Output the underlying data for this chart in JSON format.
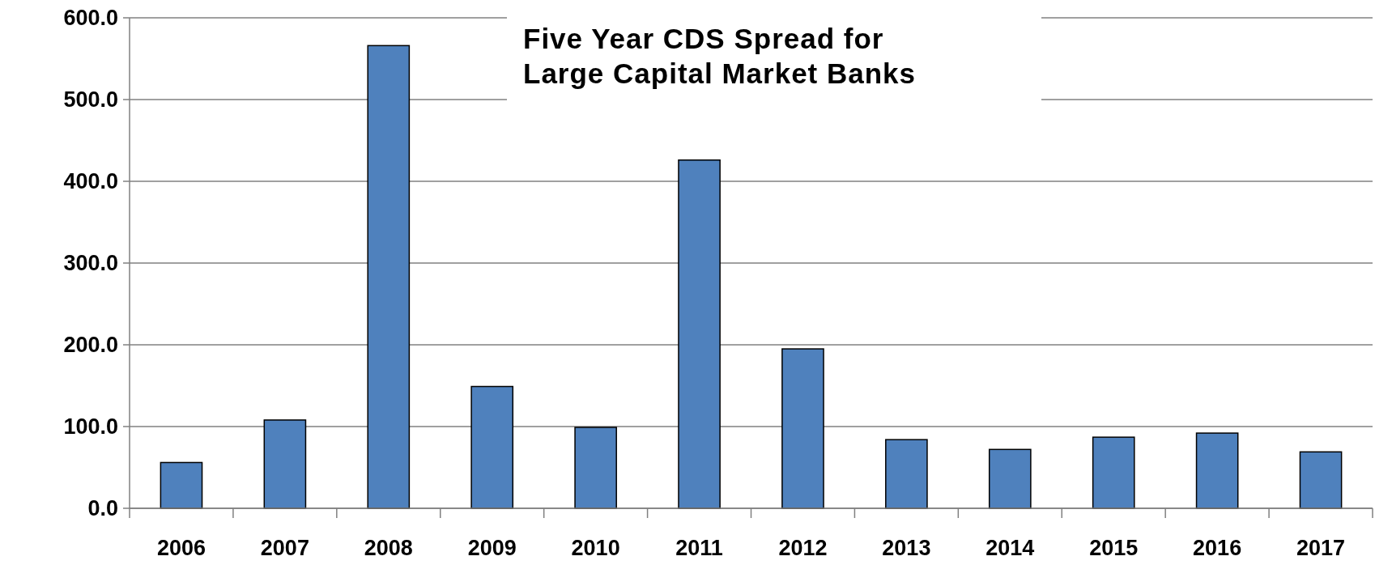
{
  "chart_data": {
    "type": "bar",
    "title": "Five Year CDS Spread for\nLarge Capital Market Banks",
    "categories": [
      "2006",
      "2007",
      "2008",
      "2009",
      "2010",
      "2011",
      "2012",
      "2013",
      "2014",
      "2015",
      "2016",
      "2017"
    ],
    "values": [
      56,
      108,
      566,
      149,
      99,
      426,
      195,
      84,
      72,
      87,
      92,
      69
    ],
    "color": "#4f81bd",
    "ylim": [
      0,
      600
    ],
    "yticks": [
      {
        "value": 0,
        "label": "0.0"
      },
      {
        "value": 100,
        "label": "100.0"
      },
      {
        "value": 200,
        "label": "200.0"
      },
      {
        "value": 300,
        "label": "300.0"
      },
      {
        "value": 400,
        "label": "400.0"
      },
      {
        "value": 500,
        "label": "500.0"
      },
      {
        "value": 600,
        "label": "600.0"
      }
    ],
    "grid": "y"
  }
}
